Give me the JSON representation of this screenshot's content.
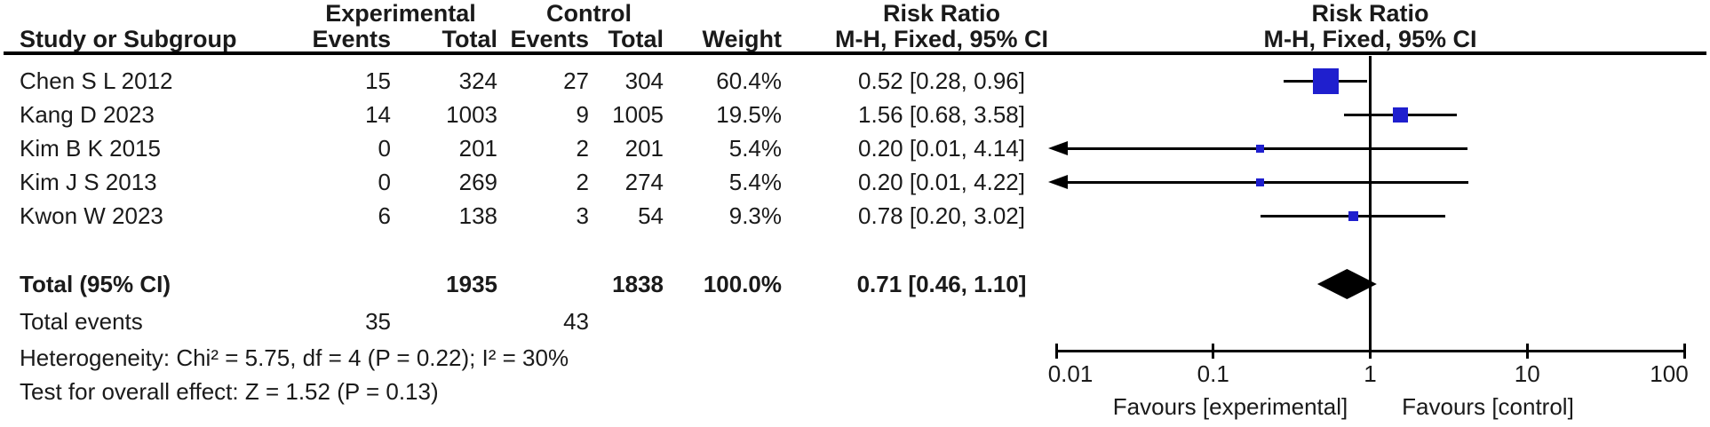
{
  "colors": {
    "marker_blue": "#1F1FCE",
    "line_black": "#000000",
    "ink": "#1a1a1a",
    "background": "#ffffff"
  },
  "table": {
    "group_headers": {
      "experimental": "Experimental",
      "control": "Control",
      "risk_ratio_left": "Risk Ratio",
      "risk_ratio_right": "Risk Ratio"
    },
    "col_headers": {
      "study": "Study or Subgroup",
      "exp_events": "Events",
      "exp_total": "Total",
      "ctrl_events": "Events",
      "ctrl_total": "Total",
      "weight": "Weight",
      "mh_left": "M-H, Fixed, 95% CI",
      "mh_right": "M-H, Fixed, 95% CI"
    },
    "total_row": {
      "label": "Total (95% CI)",
      "exp_total": "1935",
      "ctrl_total": "1838",
      "weight": "100.0%",
      "ci_label": "0.71 [0.46, 1.10]"
    },
    "total_events": {
      "label": "Total events",
      "exp": "35",
      "ctrl": "43"
    },
    "heterogeneity": "Heterogeneity: Chi² = 5.75, df = 4 (P = 0.22); I² = 30%",
    "overall_effect": "Test for overall effect: Z = 1.52 (P = 0.13)"
  },
  "chart_data": {
    "type": "scatter",
    "subtype": "forest-plot-meta-analysis",
    "effect_measure": "Risk Ratio, M-H, Fixed, 95% CI",
    "studies": [
      {
        "study": "Chen S L 2012",
        "exp_events": "15",
        "exp_total": "324",
        "ctrl_events": "27",
        "ctrl_total": "304",
        "weight": "60.4%",
        "weight_pct": 60.4,
        "rr": 0.52,
        "ci_low": 0.28,
        "ci_high": 0.96,
        "ci_label": "0.52 [0.28, 0.96]",
        "arrow_low": false
      },
      {
        "study": "Kang D 2023",
        "exp_events": "14",
        "exp_total": "1003",
        "ctrl_events": "9",
        "ctrl_total": "1005",
        "weight": "19.5%",
        "weight_pct": 19.5,
        "rr": 1.56,
        "ci_low": 0.68,
        "ci_high": 3.58,
        "ci_label": "1.56 [0.68, 3.58]",
        "arrow_low": false
      },
      {
        "study": "Kim B K 2015",
        "exp_events": "0",
        "exp_total": "201",
        "ctrl_events": "2",
        "ctrl_total": "201",
        "weight": "5.4%",
        "weight_pct": 5.4,
        "rr": 0.2,
        "ci_low": 0.01,
        "ci_high": 4.14,
        "ci_label": "0.20 [0.01, 4.14]",
        "arrow_low": true
      },
      {
        "study": "Kim J S 2013",
        "exp_events": "0",
        "exp_total": "269",
        "ctrl_events": "2",
        "ctrl_total": "274",
        "weight": "5.4%",
        "weight_pct": 5.4,
        "rr": 0.2,
        "ci_low": 0.01,
        "ci_high": 4.22,
        "ci_label": "0.20 [0.01, 4.22]",
        "arrow_low": true
      },
      {
        "study": "Kwon W 2023",
        "exp_events": "6",
        "exp_total": "138",
        "ctrl_events": "3",
        "ctrl_total": "54",
        "weight": "9.3%",
        "weight_pct": 9.3,
        "rr": 0.78,
        "ci_low": 0.2,
        "ci_high": 3.02,
        "ci_label": "0.78 [0.20, 3.02]",
        "arrow_low": false
      }
    ],
    "total": {
      "rr": 0.71,
      "ci_low": 0.46,
      "ci_high": 1.1
    },
    "axis": {
      "scale": "log",
      "min": 0.01,
      "max": 100,
      "tick_labels": [
        "0.01",
        "0.1",
        "1",
        "10",
        "100"
      ],
      "tick_values": [
        0.01,
        0.1,
        1,
        10,
        100
      ],
      "reference_line": 1
    },
    "footer_labels": {
      "favours_left": "Favours [experimental]",
      "favours_right": "Favours [control]"
    }
  }
}
